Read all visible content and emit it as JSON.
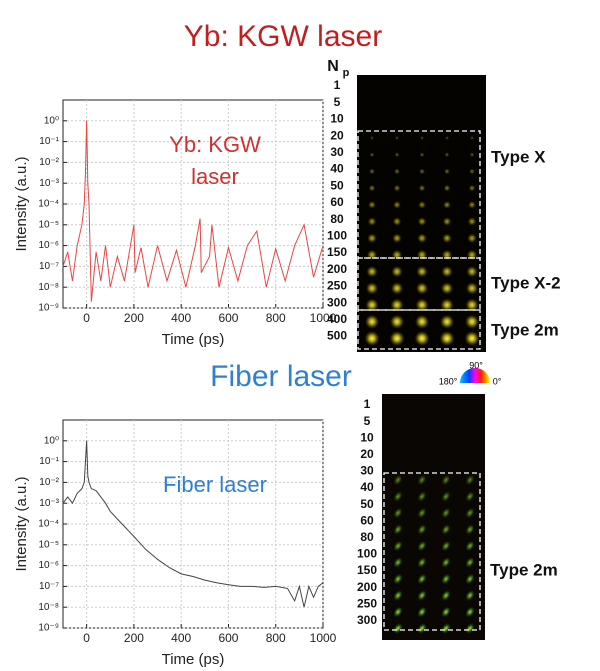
{
  "chart_data": [
    {
      "type": "line",
      "xlabel": "Time (ps)",
      "ylabel": "Intensity (a.u.)",
      "annotation": [
        "Yb: KGW",
        "laser"
      ],
      "annotation_color": "#d03030",
      "log_y": true,
      "grid": true,
      "xlim": [
        -100,
        1000
      ],
      "xticks": [
        0,
        200,
        400,
        600,
        800,
        1000
      ],
      "ylim": [
        1e-09,
        10
      ],
      "yticks": [
        {
          "value": 1,
          "label": "10⁰"
        },
        {
          "value": 0.1,
          "label": "10⁻¹"
        },
        {
          "value": 0.01,
          "label": "10⁻²"
        },
        {
          "value": 0.001,
          "label": "10⁻³"
        },
        {
          "value": 0.0001,
          "label": "10⁻⁴"
        },
        {
          "value": 1e-05,
          "label": "10⁻⁵"
        },
        {
          "value": 1e-06,
          "label": "10⁻⁶"
        },
        {
          "value": 1e-07,
          "label": "10⁻⁷"
        },
        {
          "value": 1e-08,
          "label": "10⁻⁸"
        },
        {
          "value": 1e-09,
          "label": "10⁻⁹"
        }
      ],
      "x": [
        -100,
        -80,
        -60,
        -40,
        -20,
        -10,
        -5,
        0,
        5,
        10,
        20,
        40,
        60,
        80,
        100,
        130,
        160,
        200,
        205,
        230,
        260,
        300,
        340,
        380,
        420,
        460,
        480,
        485,
        520,
        530,
        560,
        600,
        640,
        680,
        720,
        760,
        800,
        840,
        880,
        920,
        960,
        1000
      ],
      "series": [
        {
          "color": "#e84545",
          "values": [
            1e-07,
            5e-07,
            2e-08,
            1e-06,
            1e-05,
            0.0001,
            0.003,
            1,
            0.001,
            0.0001,
            2e-09,
            5e-07,
            2e-08,
            1e-06,
            1e-08,
            3e-07,
            2e-08,
            1e-05,
            5e-08,
            8e-07,
            1e-08,
            1e-06,
            2e-08,
            6e-07,
            1e-08,
            1e-06,
            2e-05,
            5e-08,
            3e-07,
            1e-05,
            1e-08,
            8e-07,
            2e-08,
            1e-06,
            5e-06,
            1e-08,
            7e-07,
            2e-08,
            1e-06,
            1e-05,
            3e-08,
            1e-06
          ]
        }
      ]
    },
    {
      "type": "line",
      "xlabel": "Time (ps)",
      "ylabel": "Intensity (a.u.)",
      "annotation": [
        "Fiber laser"
      ],
      "annotation_color": "#2f80d0",
      "log_y": true,
      "grid": true,
      "xlim": [
        -100,
        1000
      ],
      "xticks": [
        0,
        200,
        400,
        600,
        800,
        1000
      ],
      "ylim": [
        1e-09,
        10
      ],
      "yticks": [
        {
          "value": 1,
          "label": "10⁰"
        },
        {
          "value": 0.1,
          "label": "10⁻¹"
        },
        {
          "value": 0.01,
          "label": "10⁻²"
        },
        {
          "value": 0.001,
          "label": "10⁻³"
        },
        {
          "value": 0.0001,
          "label": "10⁻⁴"
        },
        {
          "value": 1e-05,
          "label": "10⁻⁵"
        },
        {
          "value": 1e-06,
          "label": "10⁻⁶"
        },
        {
          "value": 1e-07,
          "label": "10⁻⁷"
        },
        {
          "value": 1e-08,
          "label": "10⁻⁸"
        },
        {
          "value": 1e-09,
          "label": "10⁻⁹"
        }
      ],
      "x": [
        -100,
        -80,
        -60,
        -40,
        -20,
        -10,
        0,
        5,
        10,
        20,
        40,
        60,
        80,
        100,
        150,
        200,
        250,
        300,
        350,
        400,
        450,
        500,
        550,
        600,
        650,
        700,
        750,
        800,
        850,
        880,
        900,
        920,
        940,
        960,
        980,
        1000
      ],
      "series": [
        {
          "color": "#444444",
          "values": [
            0.001,
            0.002,
            0.001,
            0.003,
            0.005,
            0.01,
            1,
            0.02,
            0.01,
            0.005,
            0.004,
            0.002,
            0.001,
            0.0004,
            0.0001,
            2.5e-05,
            6e-06,
            2e-06,
            8e-07,
            4e-07,
            3e-07,
            2e-07,
            1.5e-07,
            1.2e-07,
            1e-07,
            1e-07,
            9e-08,
            1e-07,
            8e-08,
            2e-08,
            1e-07,
            1e-08,
            1e-07,
            3e-08,
            1e-07,
            1.5e-07
          ]
        }
      ]
    }
  ],
  "panel_titles": [
    "Yb: KGW laser",
    "Fiber laser"
  ],
  "panel_title_colors": [
    "#c01f1f",
    "#2f80d0"
  ],
  "images": [
    {
      "np_header": {
        "main": "N",
        "sub": "p"
      },
      "np": [
        "1",
        "5",
        "10",
        "20",
        "30",
        "40",
        "50",
        "60",
        "80",
        "100",
        "150",
        "200",
        "250",
        "300",
        "400",
        "500"
      ],
      "types": [
        "Type X",
        "Type X-2",
        "Type 2m"
      ]
    },
    {
      "np": [
        "1",
        "5",
        "10",
        "20",
        "30",
        "40",
        "50",
        "60",
        "80",
        "100",
        "150",
        "200",
        "250",
        "300"
      ],
      "types": [
        "Type 2m"
      ]
    }
  ],
  "color_wheel": [
    "90°",
    "180°",
    "0°"
  ]
}
